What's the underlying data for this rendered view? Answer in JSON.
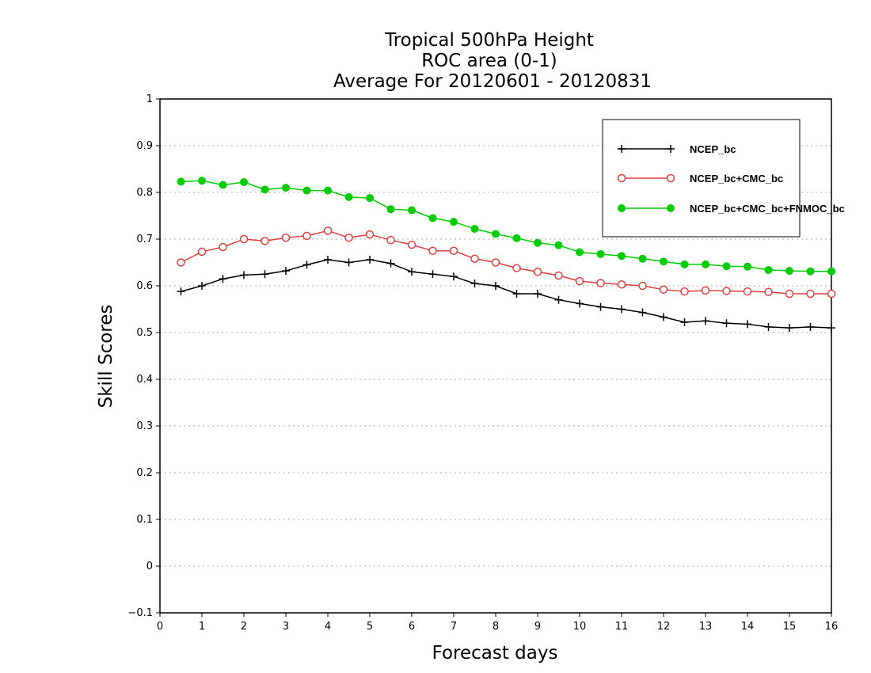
{
  "chart_data": {
    "type": "line",
    "title": [
      "Tropical 500hPa Height",
      "ROC area (0-1)",
      "Average For 20120601 - 20120831"
    ],
    "xlabel": "Forecast days",
    "ylabel": "Skill Scores",
    "xlim": [
      0,
      16
    ],
    "ylim": [
      -0.1,
      1
    ],
    "xticks": [
      "0",
      "1",
      "2",
      "3",
      "4",
      "5",
      "6",
      "7",
      "8",
      "9",
      "10",
      "11",
      "12",
      "13",
      "14",
      "15",
      "16"
    ],
    "yticks": [
      "−0.1",
      "0",
      "0.1",
      "0.2",
      "0.3",
      "0.4",
      "0.5",
      "0.6",
      "0.7",
      "0.8",
      "0.9",
      "1"
    ],
    "grid": true,
    "legend_position": "top-right",
    "x": [
      0.5,
      1,
      1.5,
      2,
      2.5,
      3,
      3.5,
      4,
      4.5,
      5,
      5.5,
      6,
      6.5,
      7,
      7.5,
      8,
      8.5,
      9,
      9.5,
      10,
      10.5,
      11,
      11.5,
      12,
      12.5,
      13,
      13.5,
      14,
      14.5,
      15,
      15.5,
      16
    ],
    "series": [
      {
        "name": "NCEP_bc",
        "color": "#000000",
        "marker": "plus",
        "values": [
          0.588,
          0.6,
          0.615,
          0.623,
          0.625,
          0.632,
          0.645,
          0.656,
          0.65,
          0.656,
          0.648,
          0.63,
          0.625,
          0.62,
          0.605,
          0.6,
          0.583,
          0.583,
          0.57,
          0.562,
          0.555,
          0.55,
          0.543,
          0.533,
          0.522,
          0.525,
          0.52,
          0.518,
          0.512,
          0.51,
          0.512,
          0.51
        ]
      },
      {
        "name": "NCEP_bc+CMC_bc",
        "color": "#e04040",
        "marker": "open-circle",
        "values": [
          0.65,
          0.673,
          0.683,
          0.7,
          0.696,
          0.703,
          0.707,
          0.718,
          0.703,
          0.71,
          0.698,
          0.688,
          0.675,
          0.675,
          0.658,
          0.65,
          0.638,
          0.63,
          0.622,
          0.61,
          0.606,
          0.603,
          0.6,
          0.592,
          0.588,
          0.59,
          0.589,
          0.588,
          0.587,
          0.583,
          0.583,
          0.583
        ]
      },
      {
        "name": "NCEP_bc+CMC_bc+FNMOC_bc",
        "color": "#00cc00",
        "marker": "filled-circle",
        "values": [
          0.823,
          0.825,
          0.816,
          0.822,
          0.806,
          0.81,
          0.804,
          0.804,
          0.79,
          0.788,
          0.764,
          0.762,
          0.745,
          0.737,
          0.722,
          0.711,
          0.702,
          0.692,
          0.687,
          0.672,
          0.668,
          0.664,
          0.658,
          0.652,
          0.646,
          0.646,
          0.642,
          0.641,
          0.634,
          0.632,
          0.631,
          0.631
        ]
      }
    ]
  }
}
